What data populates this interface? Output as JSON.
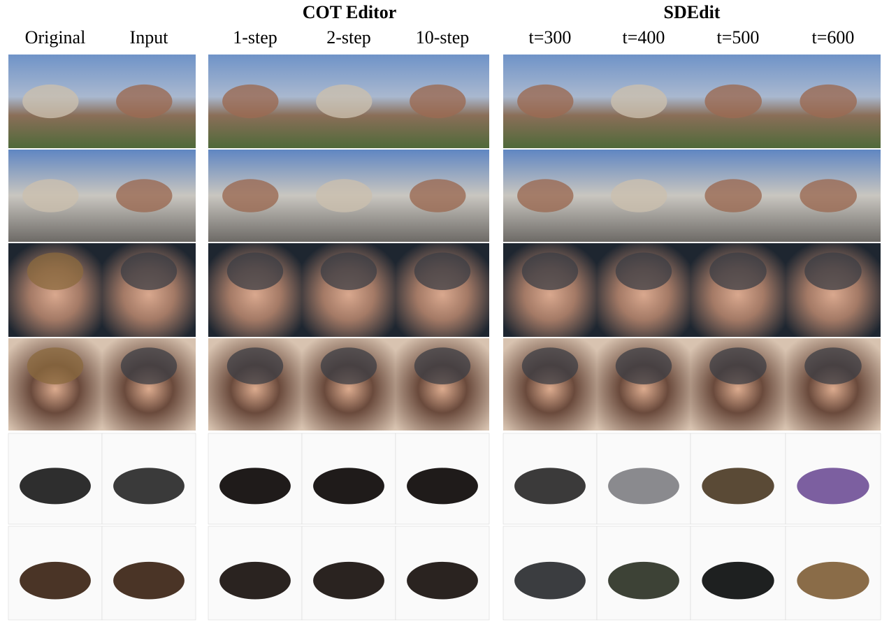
{
  "groups": [
    {
      "title": "COT Editor"
    },
    {
      "title": "SDEdit"
    }
  ],
  "columns": [
    "Original",
    "Input",
    "1-step",
    "2-step",
    "10-step",
    "t=300",
    "t=400",
    "t=500",
    "t=600"
  ]
}
